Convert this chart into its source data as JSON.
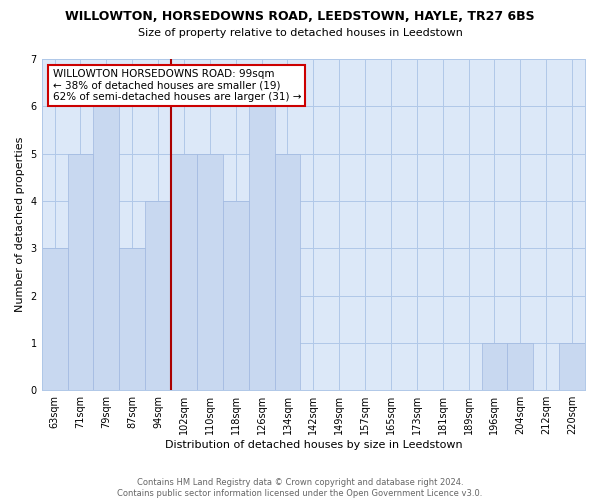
{
  "title": "WILLOWTON, HORSEDOWNS ROAD, LEEDSTOWN, HAYLE, TR27 6BS",
  "subtitle": "Size of property relative to detached houses in Leedstown",
  "xlabel": "Distribution of detached houses by size in Leedstown",
  "ylabel": "Number of detached properties",
  "footer_line1": "Contains HM Land Registry data © Crown copyright and database right 2024.",
  "footer_line2": "Contains public sector information licensed under the Open Government Licence v3.0.",
  "bar_labels": [
    "63sqm",
    "71sqm",
    "79sqm",
    "87sqm",
    "94sqm",
    "102sqm",
    "110sqm",
    "118sqm",
    "126sqm",
    "134sqm",
    "142sqm",
    "149sqm",
    "157sqm",
    "165sqm",
    "173sqm",
    "181sqm",
    "189sqm",
    "196sqm",
    "204sqm",
    "212sqm",
    "220sqm"
  ],
  "bar_values": [
    3,
    5,
    6,
    3,
    4,
    5,
    5,
    4,
    6,
    5,
    0,
    0,
    0,
    0,
    0,
    0,
    0,
    1,
    1,
    0,
    1
  ],
  "bar_color": "#c8d8f0",
  "bar_edge_color": "#a0b8e0",
  "plot_bg_color": "#dce8f8",
  "reference_line_color": "#aa0000",
  "annotation_title": "WILLOWTON HORSEDOWNS ROAD: 99sqm",
  "annotation_line1": "← 38% of detached houses are smaller (19)",
  "annotation_line2": "62% of semi-detached houses are larger (31) →",
  "annotation_box_facecolor": "#ffffff",
  "annotation_box_edgecolor": "#cc0000",
  "ylim": [
    0,
    7
  ],
  "yticks": [
    0,
    1,
    2,
    3,
    4,
    5,
    6,
    7
  ],
  "ref_line_x": 4.5,
  "grid_color": "#b0c8e8",
  "background_color": "#ffffff",
  "title_fontsize": 9,
  "subtitle_fontsize": 8,
  "xlabel_fontsize": 8,
  "ylabel_fontsize": 8,
  "tick_fontsize": 7,
  "footer_fontsize": 6
}
